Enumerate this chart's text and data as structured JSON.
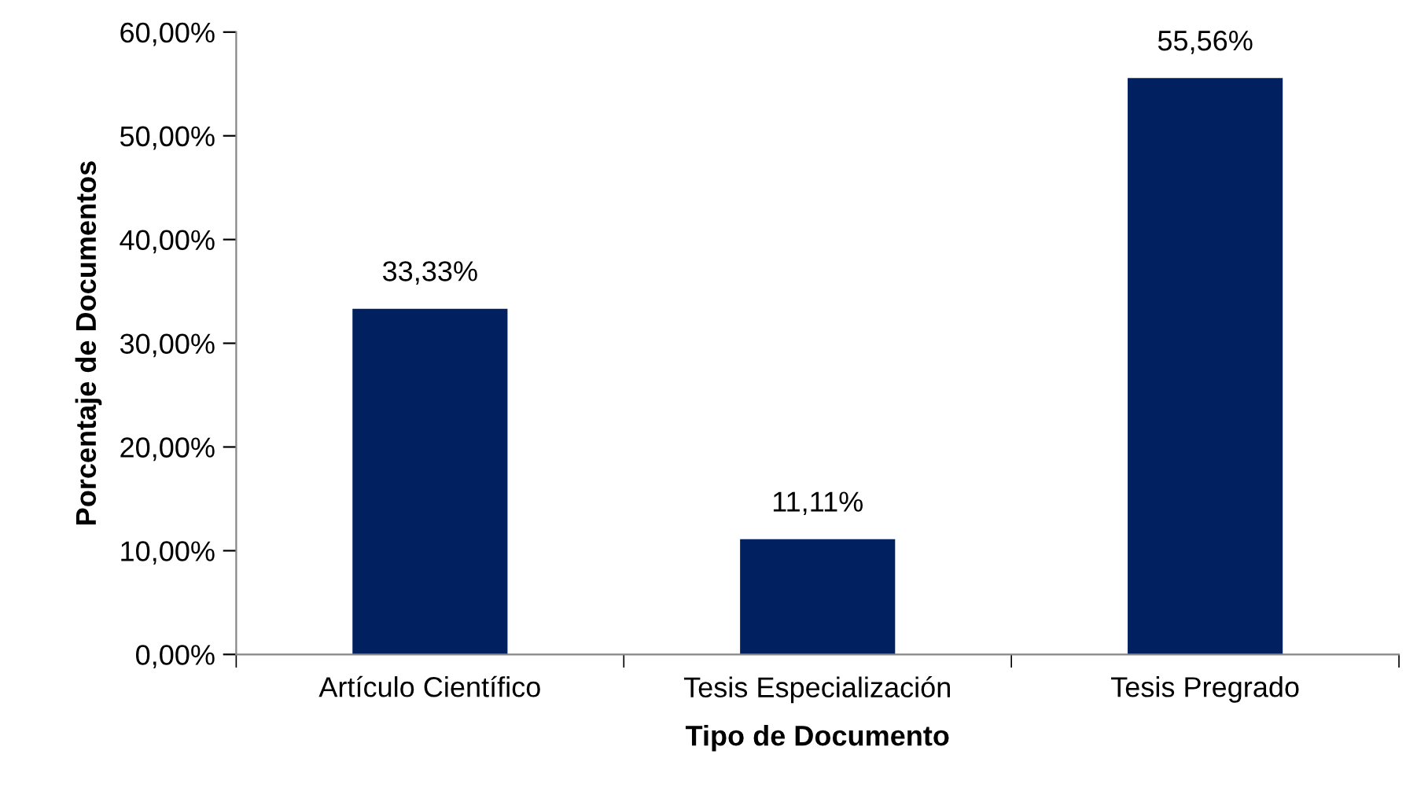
{
  "chart_data": {
    "type": "bar",
    "xlabel": "Tipo de Documento",
    "ylabel": "Porcentaje de Documentos",
    "categories": [
      "Artículo Científico",
      "Tesis Especialización",
      "Tesis Pregrado"
    ],
    "values": [
      33.33,
      11.11,
      55.56
    ],
    "value_labels": [
      "33,33%",
      "11,11%",
      "55,56%"
    ],
    "color": "#002060",
    "ylim": [
      0,
      60
    ],
    "yticks": [
      {
        "value": 0,
        "label": "0,00%"
      },
      {
        "value": 10,
        "label": "10,00%"
      },
      {
        "value": 20,
        "label": "20,00%"
      },
      {
        "value": 30,
        "label": "30,00%"
      },
      {
        "value": 40,
        "label": "40,00%"
      },
      {
        "value": 50,
        "label": "50,00%"
      },
      {
        "value": 60,
        "label": "60,00%"
      }
    ],
    "grid": false
  }
}
